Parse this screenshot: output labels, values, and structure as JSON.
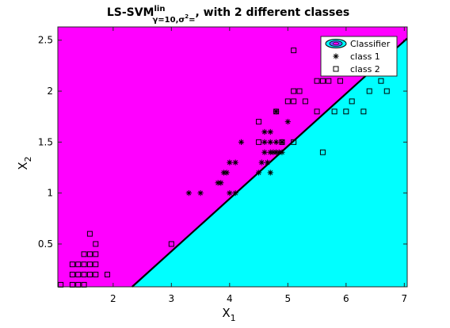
{
  "figure": {
    "title_main": "LS-SVM",
    "title_sup": "lin",
    "title_sub": "γ=10,σ",
    "title_sub_sup": "2",
    "title_sub_tail": "=",
    "title_tail": ", with 2 different classes"
  },
  "chart_data": {
    "type": "scatter",
    "xlabel_main": "X",
    "xlabel_sub": "1",
    "ylabel_main": "X",
    "ylabel_sub": "2",
    "xlim": [
      1.05,
      7.05
    ],
    "ylim": [
      0.08,
      2.63
    ],
    "x_ticks": [
      2,
      3,
      4,
      5,
      6,
      7
    ],
    "y_ticks": [
      0.5,
      1,
      1.5,
      2,
      2.5
    ],
    "x_tick_labels": [
      "2",
      "3",
      "4",
      "5",
      "6",
      "7"
    ],
    "y_tick_labels": [
      "0.5",
      "1",
      "1.5",
      "2",
      "2.5"
    ],
    "grid": false,
    "legend_position": "top-right",
    "legend": [
      "Classifier",
      "class 1",
      "class 2"
    ],
    "decision_boundary": {
      "slope": 0.516,
      "intercept": -1.12
    },
    "region_colors": {
      "class_1": "#ff00ff",
      "class_2": "#00ffff"
    },
    "series": [
      {
        "name": "class 1",
        "marker": "asterisk",
        "points": [
          [
            3.3,
            1.0
          ],
          [
            3.5,
            1.0
          ],
          [
            3.8,
            1.1
          ],
          [
            3.85,
            1.1
          ],
          [
            3.9,
            1.2
          ],
          [
            3.95,
            1.2
          ],
          [
            4.0,
            1.3
          ],
          [
            4.1,
            1.3
          ],
          [
            4.0,
            1.0
          ],
          [
            4.1,
            1.0
          ],
          [
            4.2,
            1.5
          ],
          [
            4.5,
            1.2
          ],
          [
            4.55,
            1.3
          ],
          [
            4.6,
            1.4
          ],
          [
            4.7,
            1.4
          ],
          [
            4.8,
            1.4
          ],
          [
            4.9,
            1.5
          ],
          [
            4.6,
            1.5
          ],
          [
            4.7,
            1.5
          ],
          [
            4.8,
            1.5
          ],
          [
            4.6,
            1.6
          ],
          [
            4.7,
            1.6
          ],
          [
            4.8,
            1.8
          ],
          [
            4.7,
            1.2
          ],
          [
            4.9,
            1.4
          ],
          [
            5.0,
            1.7
          ],
          [
            4.65,
            1.3
          ],
          [
            4.75,
            1.4
          ],
          [
            4.85,
            1.4
          ]
        ]
      },
      {
        "name": "class 2",
        "marker": "square",
        "points": [
          [
            1.1,
            0.1
          ],
          [
            1.3,
            0.1
          ],
          [
            1.4,
            0.1
          ],
          [
            1.5,
            0.1
          ],
          [
            1.3,
            0.2
          ],
          [
            1.4,
            0.2
          ],
          [
            1.5,
            0.2
          ],
          [
            1.6,
            0.2
          ],
          [
            1.7,
            0.2
          ],
          [
            1.9,
            0.2
          ],
          [
            1.3,
            0.3
          ],
          [
            1.4,
            0.3
          ],
          [
            1.5,
            0.3
          ],
          [
            1.6,
            0.3
          ],
          [
            1.7,
            0.3
          ],
          [
            1.5,
            0.4
          ],
          [
            1.6,
            0.4
          ],
          [
            1.7,
            0.4
          ],
          [
            1.7,
            0.5
          ],
          [
            1.6,
            0.6
          ],
          [
            3.0,
            0.5
          ],
          [
            4.5,
            1.7
          ],
          [
            4.5,
            1.5
          ],
          [
            4.8,
            1.8
          ],
          [
            4.9,
            1.5
          ],
          [
            5.0,
            1.9
          ],
          [
            5.1,
            1.9
          ],
          [
            5.1,
            2.0
          ],
          [
            5.2,
            2.0
          ],
          [
            5.3,
            1.9
          ],
          [
            5.1,
            2.4
          ],
          [
            5.1,
            1.5
          ],
          [
            5.5,
            1.8
          ],
          [
            5.5,
            2.1
          ],
          [
            5.6,
            2.1
          ],
          [
            5.6,
            1.4
          ],
          [
            5.7,
            2.1
          ],
          [
            5.8,
            1.8
          ],
          [
            5.9,
            2.1
          ],
          [
            6.0,
            1.8
          ],
          [
            6.1,
            1.9
          ],
          [
            6.3,
            1.8
          ],
          [
            6.4,
            2.0
          ],
          [
            6.6,
            2.1
          ],
          [
            6.7,
            2.0
          ],
          [
            6.5,
            2.2
          ],
          [
            5.7,
            2.3
          ],
          [
            5.8,
            2.2
          ],
          [
            6.0,
            2.5
          ],
          [
            6.3,
            2.5
          ]
        ]
      }
    ]
  }
}
